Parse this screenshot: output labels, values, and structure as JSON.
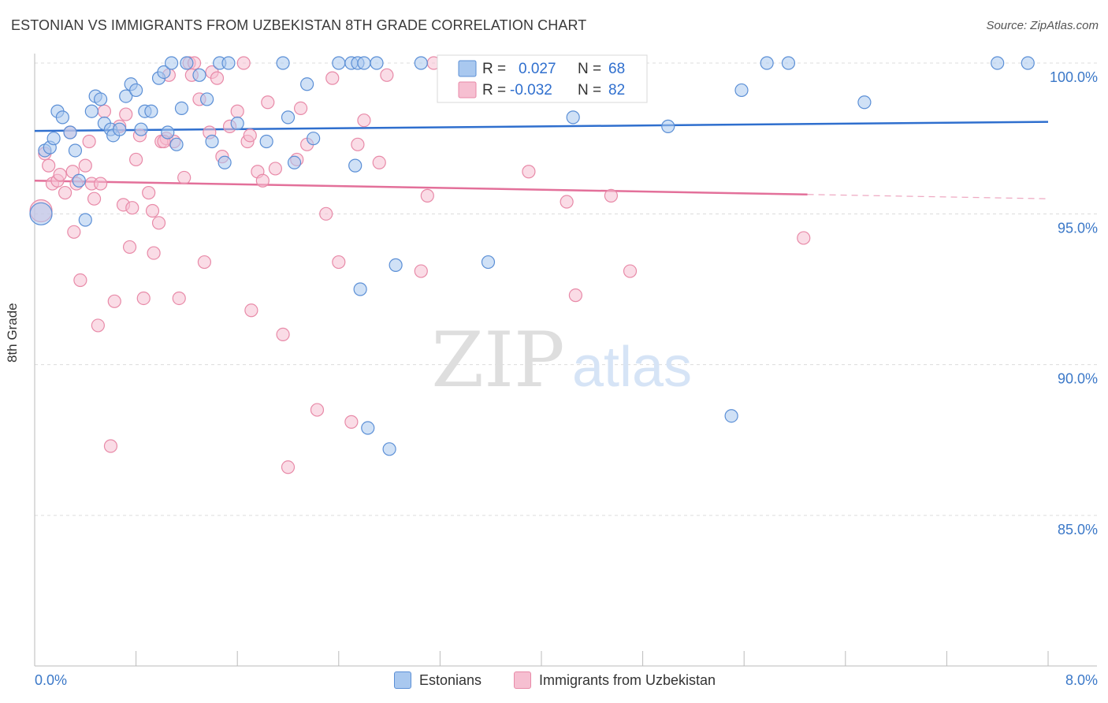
{
  "header": {
    "title": "ESTONIAN VS IMMIGRANTS FROM UZBEKISTAN 8TH GRADE CORRELATION CHART",
    "source": "Source: ZipAtlas.com"
  },
  "watermark": {
    "zip": "ZIP",
    "atlas": "atlas"
  },
  "colors": {
    "blue_fill": "#a9c8ef",
    "blue_stroke": "#5b8fd6",
    "blue_line": "#2f6fce",
    "pink_fill": "#f6bfd1",
    "pink_stroke": "#e88aa8",
    "pink_line": "#e3709a",
    "tick_text": "#3b78c8",
    "grid": "#dcdcdc"
  },
  "legend": {
    "rows": [
      {
        "r_label": "R =",
        "r_value": "0.027",
        "n_label": "N =",
        "n_value": "68"
      },
      {
        "r_label": "R =",
        "r_value": "-0.032",
        "n_label": "N =",
        "n_value": "82"
      }
    ]
  },
  "bottom_legend": {
    "series1": "Estonians",
    "series2": "Immigrants from Uzbekistan"
  },
  "chart_data": {
    "type": "scatter",
    "ylabel": "8th Grade",
    "xlim": [
      0.0,
      8.0
    ],
    "ylim": [
      80.0,
      100.8
    ],
    "x_tick_labels": [
      "0.0%",
      "8.0%"
    ],
    "y_ticks": [
      100.0,
      95.0,
      90.0,
      85.0
    ],
    "y_tick_labels": [
      "100.0%",
      "95.0%",
      "90.0%",
      "85.0%"
    ],
    "grid": true,
    "legend_position": "top-center",
    "series": [
      {
        "name": "Estonians",
        "trend": {
          "x0": 0.0,
          "y0": 97.75,
          "x1": 8.0,
          "y1": 98.05,
          "dashed_from": null
        },
        "points": [
          [
            0.05,
            95.0
          ],
          [
            0.08,
            97.1
          ],
          [
            0.12,
            97.2
          ],
          [
            0.15,
            97.5
          ],
          [
            0.18,
            98.4
          ],
          [
            0.22,
            98.2
          ],
          [
            0.28,
            97.7
          ],
          [
            0.32,
            97.1
          ],
          [
            0.35,
            96.1
          ],
          [
            0.4,
            94.8
          ],
          [
            0.45,
            98.4
          ],
          [
            0.48,
            98.9
          ],
          [
            0.52,
            98.8
          ],
          [
            0.55,
            98.0
          ],
          [
            0.6,
            97.8
          ],
          [
            0.62,
            97.6
          ],
          [
            0.67,
            97.8
          ],
          [
            0.72,
            98.9
          ],
          [
            0.76,
            99.3
          ],
          [
            0.8,
            99.1
          ],
          [
            0.84,
            97.8
          ],
          [
            0.87,
            98.4
          ],
          [
            0.92,
            98.4
          ],
          [
            0.98,
            99.5
          ],
          [
            1.02,
            99.7
          ],
          [
            1.05,
            97.7
          ],
          [
            1.08,
            100.0
          ],
          [
            1.12,
            97.3
          ],
          [
            1.16,
            98.5
          ],
          [
            1.2,
            100.0
          ],
          [
            1.3,
            99.6
          ],
          [
            1.36,
            98.8
          ],
          [
            1.4,
            97.4
          ],
          [
            1.46,
            100.0
          ],
          [
            1.5,
            96.7
          ],
          [
            1.53,
            100.0
          ],
          [
            1.6,
            98.0
          ],
          [
            1.83,
            97.4
          ],
          [
            1.96,
            100.0
          ],
          [
            2.0,
            98.2
          ],
          [
            2.05,
            96.7
          ],
          [
            2.15,
            99.3
          ],
          [
            2.2,
            97.5
          ],
          [
            2.4,
            100.0
          ],
          [
            2.5,
            100.0
          ],
          [
            2.55,
            100.0
          ],
          [
            2.6,
            100.0
          ],
          [
            2.7,
            100.0
          ],
          [
            2.63,
            87.9
          ],
          [
            2.57,
            92.5
          ],
          [
            2.8,
            87.2
          ],
          [
            2.85,
            93.3
          ],
          [
            3.05,
            100.0
          ],
          [
            3.25,
            100.0
          ],
          [
            3.6,
            100.0
          ],
          [
            3.58,
            93.4
          ],
          [
            4.15,
            100.0
          ],
          [
            4.25,
            98.2
          ],
          [
            4.4,
            100.0
          ],
          [
            5.0,
            97.9
          ],
          [
            5.58,
            99.1
          ],
          [
            5.5,
            88.3
          ],
          [
            5.78,
            100.0
          ],
          [
            5.95,
            100.0
          ],
          [
            6.55,
            98.7
          ],
          [
            7.6,
            100.0
          ],
          [
            7.84,
            100.0
          ],
          [
            2.53,
            96.6
          ]
        ]
      },
      {
        "name": "Immigrants from Uzbekistan",
        "trend": {
          "x0": 0.0,
          "y0": 96.1,
          "x1": 8.0,
          "y1": 95.5,
          "dashed_from": 6.1
        },
        "points": [
          [
            0.05,
            95.1
          ],
          [
            0.08,
            97.0
          ],
          [
            0.11,
            96.6
          ],
          [
            0.14,
            96.0
          ],
          [
            0.18,
            96.1
          ],
          [
            0.2,
            96.3
          ],
          [
            0.24,
            95.7
          ],
          [
            0.28,
            97.7
          ],
          [
            0.3,
            96.4
          ],
          [
            0.33,
            96.0
          ],
          [
            0.36,
            92.8
          ],
          [
            0.4,
            96.6
          ],
          [
            0.45,
            96.0
          ],
          [
            0.47,
            95.5
          ],
          [
            0.5,
            91.3
          ],
          [
            0.55,
            98.4
          ],
          [
            0.6,
            87.3
          ],
          [
            0.63,
            92.1
          ],
          [
            0.67,
            97.9
          ],
          [
            0.7,
            95.3
          ],
          [
            0.72,
            98.3
          ],
          [
            0.75,
            93.9
          ],
          [
            0.77,
            95.2
          ],
          [
            0.8,
            96.8
          ],
          [
            0.83,
            97.6
          ],
          [
            0.86,
            92.2
          ],
          [
            0.9,
            95.7
          ],
          [
            0.94,
            93.7
          ],
          [
            0.98,
            94.7
          ],
          [
            1.0,
            97.4
          ],
          [
            1.04,
            97.5
          ],
          [
            1.06,
            99.6
          ],
          [
            1.1,
            97.4
          ],
          [
            1.14,
            92.2
          ],
          [
            1.18,
            96.2
          ],
          [
            1.22,
            100.0
          ],
          [
            1.24,
            99.6
          ],
          [
            1.3,
            98.8
          ],
          [
            1.34,
            93.4
          ],
          [
            1.38,
            97.7
          ],
          [
            1.4,
            99.7
          ],
          [
            1.44,
            99.5
          ],
          [
            1.48,
            96.9
          ],
          [
            1.54,
            97.9
          ],
          [
            1.6,
            98.4
          ],
          [
            1.65,
            100.0
          ],
          [
            1.71,
            91.8
          ],
          [
            1.76,
            96.4
          ],
          [
            1.8,
            96.1
          ],
          [
            1.84,
            98.7
          ],
          [
            1.9,
            96.5
          ],
          [
            1.96,
            91.0
          ],
          [
            2.0,
            86.6
          ],
          [
            2.1,
            98.5
          ],
          [
            2.15,
            97.3
          ],
          [
            2.23,
            88.5
          ],
          [
            2.3,
            95.0
          ],
          [
            2.35,
            99.5
          ],
          [
            2.4,
            93.4
          ],
          [
            2.5,
            88.1
          ],
          [
            2.55,
            97.3
          ],
          [
            2.6,
            98.1
          ],
          [
            2.72,
            96.7
          ],
          [
            2.78,
            99.6
          ],
          [
            3.05,
            93.1
          ],
          [
            3.1,
            95.6
          ],
          [
            3.15,
            100.0
          ],
          [
            3.9,
            96.4
          ],
          [
            4.2,
            95.4
          ],
          [
            4.27,
            92.3
          ],
          [
            4.55,
            95.6
          ],
          [
            4.7,
            93.1
          ],
          [
            6.07,
            94.2
          ],
          [
            1.26,
            100.0
          ],
          [
            1.68,
            97.4
          ],
          [
            1.02,
            97.4
          ],
          [
            0.93,
            95.1
          ],
          [
            0.43,
            97.4
          ],
          [
            0.31,
            94.4
          ],
          [
            0.52,
            96.0
          ],
          [
            1.7,
            97.6
          ],
          [
            2.07,
            96.8
          ]
        ]
      }
    ]
  }
}
